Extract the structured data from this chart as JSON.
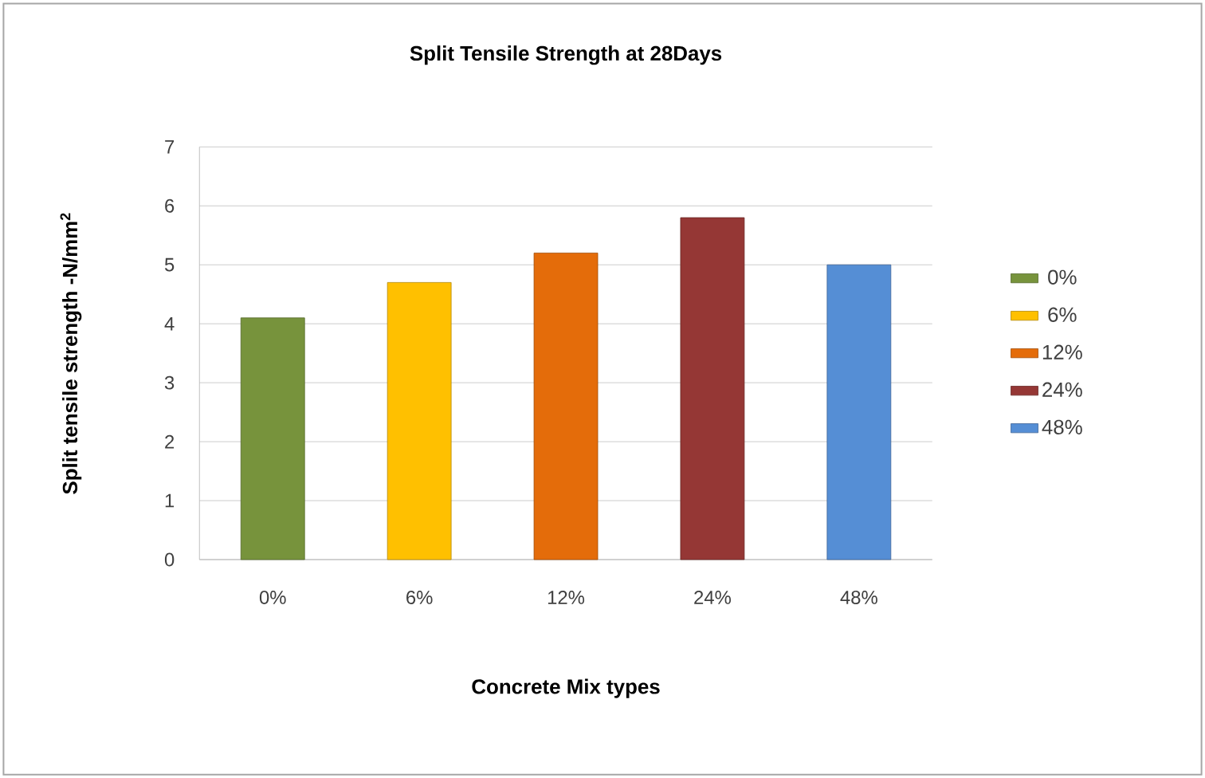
{
  "chart_data": {
    "type": "bar",
    "title": "Split Tensile Strength at 28Days",
    "xlabel": "Concrete Mix types",
    "ylabel": "Split tensile strength -N/mm$^{2}$",
    "categories": [
      "0%",
      "6%",
      "12%",
      "24%",
      "48%"
    ],
    "series": [
      {
        "name": "0%",
        "color": "#77933c",
        "values": [
          4.1,
          null,
          null,
          null,
          null
        ]
      },
      {
        "name": "6%",
        "color": "#ffc000",
        "values": [
          null,
          4.7,
          null,
          null,
          null
        ]
      },
      {
        "name": "12%",
        "color": "#e46c0a",
        "values": [
          null,
          null,
          5.2,
          null,
          null
        ]
      },
      {
        "name": "24%",
        "color": "#953735",
        "values": [
          null,
          null,
          null,
          5.8,
          null
        ]
      },
      {
        "name": "48%",
        "color": "#558ed5",
        "values": [
          null,
          null,
          null,
          null,
          5.0
        ]
      }
    ],
    "ylim": [
      0,
      7
    ],
    "yticks": [
      0,
      1,
      2,
      3,
      4,
      5,
      6,
      7
    ],
    "grid": "y",
    "legend": "right"
  }
}
